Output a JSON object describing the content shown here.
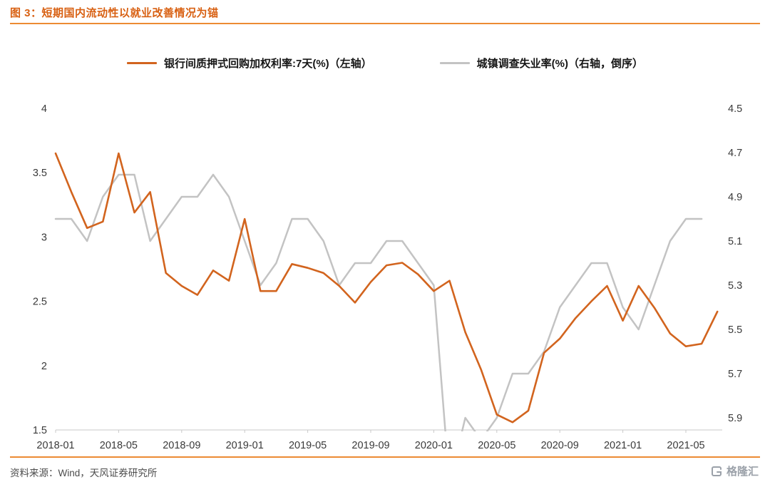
{
  "header": {
    "title": "图 3：短期国内流动性以就业改善情况为锚"
  },
  "footer": {
    "source": "资料来源：Wind，天风证券研究所",
    "logo_text": "格隆汇"
  },
  "colors": {
    "accent": "#D86012",
    "rule": "#EC8B33",
    "repo_line": "#D2641E",
    "unemployment_line": "#C3C3C3",
    "axis_text": "#3a3a3a",
    "axis_line": "#C9C9C9"
  },
  "chart_data": {
    "type": "line",
    "title": "图 3：短期国内流动性以就业改善情况为锚",
    "x": [
      "2018-01",
      "2018-02",
      "2018-03",
      "2018-04",
      "2018-05",
      "2018-06",
      "2018-07",
      "2018-08",
      "2018-09",
      "2018-10",
      "2018-11",
      "2018-12",
      "2019-01",
      "2019-02",
      "2019-03",
      "2019-04",
      "2019-05",
      "2019-06",
      "2019-07",
      "2019-08",
      "2019-09",
      "2019-10",
      "2019-11",
      "2019-12",
      "2020-01",
      "2020-02",
      "2020-03",
      "2020-04",
      "2020-05",
      "2020-06",
      "2020-07",
      "2020-08",
      "2020-09",
      "2020-10",
      "2020-11",
      "2020-12",
      "2021-01",
      "2021-02",
      "2021-03",
      "2021-04",
      "2021-05",
      "2021-06",
      "2021-07"
    ],
    "x_tick_labels": [
      "2018-01",
      "2018-05",
      "2018-09",
      "2019-01",
      "2019-05",
      "2019-09",
      "2020-01",
      "2020-05",
      "2020-09",
      "2021-01",
      "2021-05"
    ],
    "x_tick_every": 4,
    "series": [
      {
        "name": "银行间质押式回购加权利率:7天(%)（左轴）",
        "axis": "left",
        "color": "#D2641E",
        "values": [
          3.65,
          3.35,
          3.07,
          3.12,
          3.65,
          3.19,
          3.35,
          2.72,
          2.62,
          2.55,
          2.74,
          2.66,
          3.14,
          2.58,
          2.58,
          2.79,
          2.76,
          2.72,
          2.62,
          2.49,
          2.65,
          2.78,
          2.8,
          2.71,
          2.58,
          2.66,
          2.26,
          1.97,
          1.62,
          1.56,
          1.65,
          2.1,
          2.21,
          2.37,
          2.5,
          2.62,
          2.35,
          2.62,
          2.45,
          2.25,
          2.15,
          2.17,
          2.42
        ]
      },
      {
        "name": "城镇调查失业率(%)（右轴，倒序）",
        "axis": "right",
        "color": "#C3C3C3",
        "values": [
          5.0,
          5.0,
          5.1,
          4.9,
          4.8,
          4.8,
          5.1,
          5.0,
          4.9,
          4.9,
          4.8,
          4.9,
          5.1,
          5.3,
          5.2,
          5.0,
          5.0,
          5.1,
          5.3,
          5.2,
          5.2,
          5.1,
          5.1,
          5.2,
          5.3,
          6.2,
          5.9,
          6.0,
          5.9,
          5.7,
          5.7,
          5.6,
          5.4,
          5.3,
          5.2,
          5.2,
          5.4,
          5.5,
          5.3,
          5.1,
          5.0,
          5.0
        ]
      }
    ],
    "left_axis": {
      "min": 1.5,
      "max": 4.0,
      "tick_values": [
        4,
        3.5,
        3,
        2.5,
        2,
        1.5
      ],
      "tick_labels": [
        "4",
        "3.5",
        "3",
        "2.5",
        "2",
        "1.5"
      ]
    },
    "right_axis": {
      "min": 4.5,
      "max": 5.955,
      "inverted": true,
      "tick_values": [
        4.5,
        4.7,
        4.9,
        5.1,
        5.3,
        5.5,
        5.7,
        5.9
      ],
      "tick_labels": [
        "4.5",
        "4.7",
        "4.9",
        "5.1",
        "5.3",
        "5.5",
        "5.7",
        "5.9"
      ]
    },
    "grid": false,
    "legend_position": "top-center"
  }
}
